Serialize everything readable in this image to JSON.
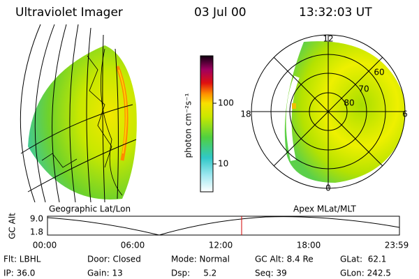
{
  "header": {
    "instrument": "Ultraviolet Imager",
    "date": "03 Jul 00",
    "time": "13:32:03 UT"
  },
  "colorbar": {
    "label": "photon cm⁻²s⁻¹",
    "ticks": [
      "100",
      "10"
    ]
  },
  "polar": {
    "mlt": [
      "12",
      "18",
      "6",
      "0"
    ],
    "mlat": [
      "60",
      "70",
      "80"
    ]
  },
  "panels": {
    "left": "Geographic Lat/Lon",
    "right": "Apex MLat/MLT"
  },
  "altitude": {
    "ylabel": "GC Alt",
    "yticks": [
      "9.0",
      "1.8"
    ],
    "xticks": [
      "00:00",
      "06:00",
      "12:00",
      "18:00",
      "23:59"
    ]
  },
  "footer": [
    [
      "Flt: LBHL",
      "Door: Closed",
      "Mode: Normal",
      "GC Alt: 8.4 Re",
      "GLat:  62.1"
    ],
    [
      "IP: 36.0",
      "Gain: 13",
      "Dsp:     5.2",
      "Seq: 39",
      "GLon: 242.5"
    ]
  ]
}
